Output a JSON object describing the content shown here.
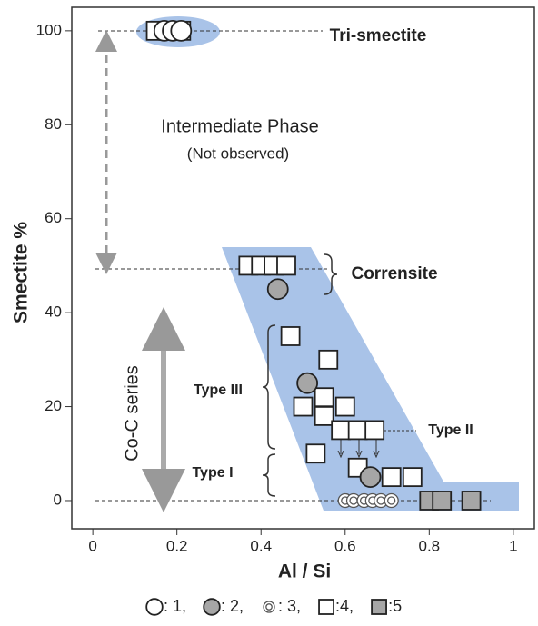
{
  "chart_data": {
    "type": "scatter",
    "x_label": "Al / Si",
    "y_label": "Smectite %",
    "xlim": [
      -0.05,
      1.05
    ],
    "ylim": [
      -6,
      105
    ],
    "xticks": [
      0,
      0.2,
      0.4,
      0.6,
      0.8,
      1
    ],
    "yticks": [
      0,
      20,
      40,
      60,
      80,
      100
    ],
    "annotations": {
      "tri": "Tri-smectite",
      "intermediate": "Intermediate Phase",
      "not_observed": "(Not observed)",
      "corrensite": "Corrensite",
      "coc": "Co-C series",
      "type3": "Type III",
      "type2": "Type II",
      "type1": "Type I"
    },
    "series": [
      {
        "name": ": 1,",
        "marker": "circle",
        "color": "#ffffff",
        "x": [
          0.17,
          0.19,
          0.21
        ],
        "values": [
          100,
          100,
          100
        ]
      },
      {
        "name": ": 2,",
        "marker": "circle",
        "color": "#a6a6a6",
        "x": [
          0.44,
          0.51,
          0.66
        ],
        "values": [
          45,
          25,
          5
        ]
      },
      {
        "name": ": 3,",
        "marker": "double-circle",
        "color": "#ffffff",
        "x": [
          0.6,
          0.62,
          0.645,
          0.665,
          0.685,
          0.71
        ],
        "values": [
          0,
          0,
          0,
          0,
          0,
          0
        ]
      },
      {
        "name": ":4,",
        "marker": "square",
        "color": "#ffffff",
        "x": [
          0.15,
          0.18,
          0.21,
          0.37,
          0.4,
          0.43,
          0.46,
          0.47,
          0.56,
          0.5,
          0.55,
          0.55,
          0.6,
          0.59,
          0.63,
          0.67,
          0.53,
          0.63,
          0.71,
          0.76
        ],
        "values": [
          100,
          100,
          100,
          50,
          50,
          50,
          50,
          35,
          30,
          20,
          22,
          18,
          20,
          15,
          15,
          15,
          10,
          7,
          5,
          5
        ]
      },
      {
        "name": " :5",
        "marker": "square",
        "color": "#a6a6a6",
        "x": [
          0.8,
          0.83,
          0.9
        ],
        "values": [
          0,
          0,
          0
        ]
      }
    ]
  }
}
